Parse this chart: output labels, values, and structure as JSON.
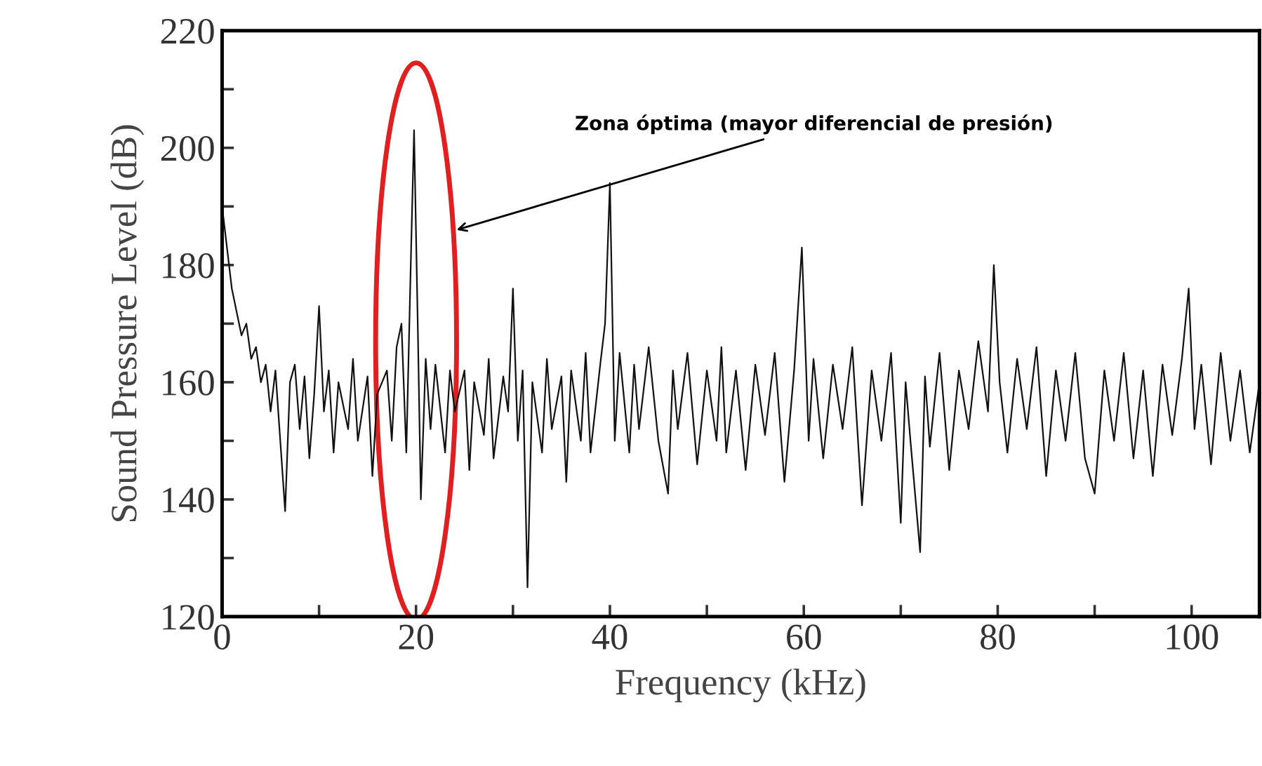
{
  "chart_data": {
    "type": "line",
    "xlabel": "Frequency (kHz)",
    "ylabel": "Sound Pressure Level (dB)",
    "annotations": [
      "Zona óptima (mayor diferencial de presión)"
    ],
    "xlim": [
      0,
      107
    ],
    "ylim": [
      120,
      220
    ],
    "xticks": [
      0,
      {
        "value": 10,
        "label": null
      },
      20,
      {
        "value": 30,
        "label": null
      },
      40,
      {
        "value": 50,
        "label": null
      },
      60,
      {
        "value": 70,
        "label": null
      },
      80,
      {
        "value": 90,
        "label": null
      },
      100
    ],
    "yticks": [
      120,
      {
        "value": 130,
        "label": null
      },
      140,
      {
        "value": 150,
        "label": null
      },
      160,
      {
        "value": 170,
        "label": null
      },
      180,
      {
        "value": 190,
        "label": null
      },
      200,
      {
        "value": 210,
        "label": null
      },
      220
    ],
    "grid": false,
    "legend": false,
    "marker": "none",
    "line_style": "solid",
    "series": [
      {
        "color": "#111111",
        "x": [
          0,
          0.5,
          1,
          1.5,
          2,
          2.5,
          3,
          3.5,
          4,
          4.5,
          5,
          5.5,
          6,
          6.5,
          7,
          7.5,
          8,
          8.5,
          9,
          9.5,
          10,
          10.5,
          11,
          11.5,
          12,
          13,
          13.5,
          14,
          15,
          15.5,
          16,
          17,
          17.5,
          18,
          18.5,
          19,
          19.5,
          19.8,
          20.2,
          20.5,
          21,
          21.5,
          22,
          23,
          23.5,
          24,
          25,
          25.5,
          26,
          27,
          27.5,
          28,
          29,
          29.5,
          30,
          30.5,
          31,
          31.5,
          32,
          33,
          33.5,
          34,
          35,
          35.5,
          36,
          37,
          37.5,
          38,
          39,
          39.5,
          40,
          40.5,
          41,
          42,
          42.5,
          43,
          44,
          45,
          46,
          46.5,
          47,
          48,
          49,
          50,
          51,
          51.5,
          52,
          53,
          54,
          55,
          56,
          57,
          58,
          59,
          59.8,
          60.5,
          61,
          62,
          63,
          64,
          65,
          66,
          67,
          68,
          69,
          70,
          70.5,
          71,
          72,
          72.5,
          73,
          74,
          75,
          76,
          77,
          78,
          79,
          79.6,
          80.2,
          81,
          82,
          83,
          84,
          85,
          86,
          87,
          88,
          89,
          90,
          91,
          92,
          93,
          94,
          95,
          96,
          97,
          98,
          99,
          99.7,
          100.3,
          101,
          102,
          103,
          104,
          105,
          106,
          107
        ],
        "values": [
          190,
          183,
          176,
          172,
          168,
          170,
          164,
          166,
          160,
          163,
          155,
          162,
          150,
          138,
          160,
          163,
          152,
          161,
          147,
          158,
          173,
          155,
          162,
          148,
          160,
          152,
          164,
          150,
          161,
          144,
          158,
          162,
          150,
          166,
          170,
          148,
          183,
          203,
          168,
          140,
          164,
          152,
          163,
          148,
          162,
          155,
          162,
          145,
          160,
          151,
          164,
          147,
          161,
          155,
          176,
          150,
          162,
          125,
          160,
          148,
          164,
          152,
          161,
          143,
          162,
          150,
          165,
          148,
          163,
          170,
          194,
          150,
          165,
          148,
          163,
          152,
          166,
          150,
          141,
          162,
          152,
          165,
          146,
          162,
          150,
          166,
          148,
          162,
          145,
          163,
          151,
          165,
          143,
          162,
          183,
          150,
          164,
          147,
          163,
          152,
          166,
          139,
          162,
          150,
          165,
          136,
          160,
          150,
          131,
          161,
          149,
          165,
          145,
          162,
          152,
          167,
          155,
          180,
          160,
          148,
          164,
          152,
          166,
          144,
          162,
          150,
          165,
          147,
          141,
          162,
          150,
          165,
          147,
          162,
          144,
          163,
          151,
          164,
          176,
          152,
          163,
          146,
          165,
          150,
          162,
          148,
          160
        ]
      }
    ]
  }
}
